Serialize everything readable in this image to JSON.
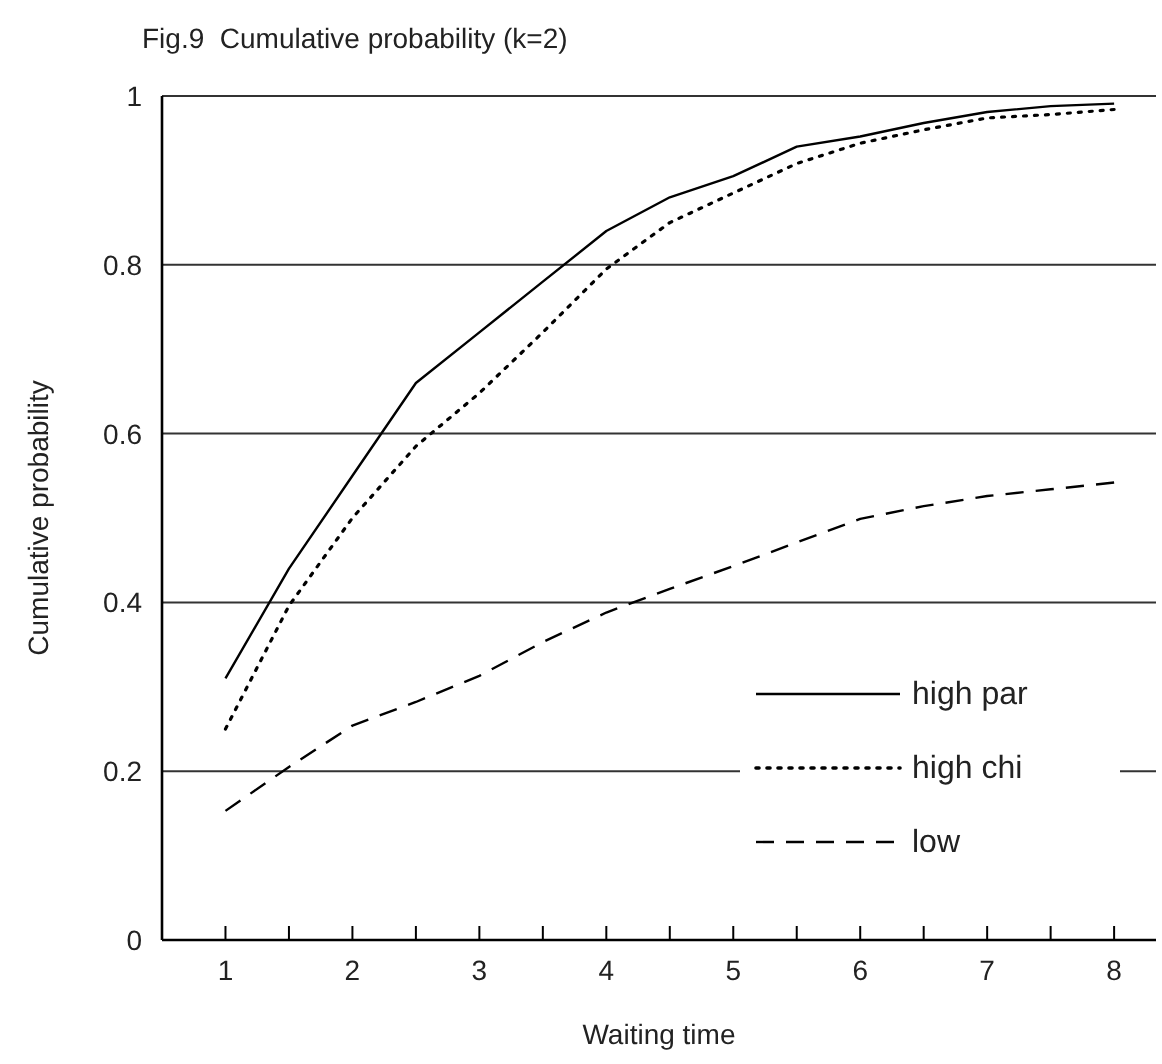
{
  "chart_data": {
    "type": "line",
    "title": "Fig.9  Cumulative probability (k=2)",
    "xlabel": "Waiting time",
    "ylabel": "Cumulative probability",
    "x": [
      1,
      1.5,
      2,
      2.5,
      3,
      3.5,
      4,
      4.5,
      5,
      5.5,
      6,
      6.5,
      7,
      7.5,
      8
    ],
    "series": [
      {
        "name": "high par",
        "color": "#000000",
        "line_style": "solid",
        "values": [
          0.31,
          0.44,
          0.55,
          0.66,
          0.72,
          0.78,
          0.84,
          0.88,
          0.905,
          0.94,
          0.952,
          0.968,
          0.981,
          0.988,
          0.991
        ]
      },
      {
        "name": "high chi",
        "color": "#000000",
        "line_style": "dotted",
        "values": [
          0.25,
          0.396,
          0.5,
          0.585,
          0.648,
          0.72,
          0.795,
          0.85,
          0.885,
          0.92,
          0.944,
          0.96,
          0.974,
          0.978,
          0.984
        ]
      },
      {
        "name": "low",
        "color": "#000000",
        "line_style": "dashed",
        "values": [
          0.153,
          0.205,
          0.254,
          0.282,
          0.313,
          0.353,
          0.388,
          0.416,
          0.443,
          0.471,
          0.499,
          0.514,
          0.526,
          0.534,
          0.542
        ]
      }
    ],
    "xlim": [
      0.5,
      8.33
    ],
    "ylim": [
      0,
      1
    ],
    "xticks": [
      1,
      {
        "value": 1.5,
        "label": null
      },
      2,
      {
        "value": 2.5,
        "label": null
      },
      3,
      {
        "value": 3.5,
        "label": null
      },
      4,
      {
        "value": 4.5,
        "label": null
      },
      5,
      {
        "value": 5.5,
        "label": null
      },
      6,
      {
        "value": 6.5,
        "label": null
      },
      7,
      {
        "value": 7.5,
        "label": null
      },
      8
    ],
    "yticks": [
      0,
      0.2,
      0.4,
      0.6,
      0.8,
      1
    ],
    "grid": "y",
    "legend": "bottom right",
    "marker": "none"
  }
}
